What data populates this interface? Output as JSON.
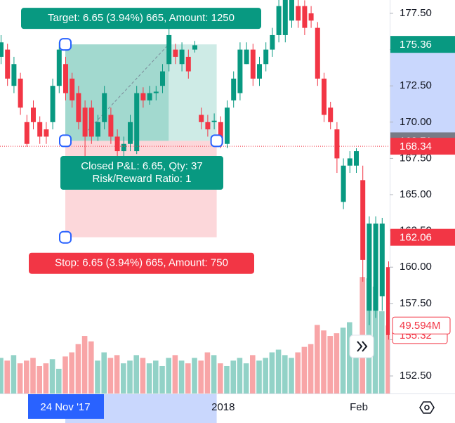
{
  "chart_data": {
    "type": "candlestick",
    "categories": [
      null,
      null,
      null,
      null,
      null,
      null,
      null,
      null,
      null,
      null,
      "24 Nov '17",
      null,
      null,
      null,
      null,
      null,
      null,
      null,
      null,
      null,
      null,
      null,
      null,
      null,
      null,
      null,
      null,
      null,
      null,
      null,
      null,
      null,
      null,
      null,
      "2018",
      null,
      null,
      null,
      null,
      null,
      null,
      null,
      null,
      null,
      null,
      null,
      null,
      null,
      null,
      null,
      null,
      null,
      null,
      null,
      null,
      "Feb",
      null,
      null,
      null,
      null,
      null
    ],
    "open": [
      174.5,
      175,
      172.5,
      173,
      170,
      171,
      170,
      169.5,
      170,
      172.5,
      174,
      173,
      172,
      171,
      171,
      169,
      170,
      170.5,
      169,
      168,
      168.5,
      168,
      172,
      171.5,
      172,
      172.5,
      174,
      175,
      174,
      174.5,
      175,
      170.5,
      170,
      170,
      170,
      168.5,
      171.5,
      172,
      174,
      175,
      173,
      174,
      175,
      176,
      176,
      177,
      178,
      178,
      177.5,
      176.5,
      173,
      171,
      169.5,
      164.5,
      167,
      167,
      166,
      157,
      157,
      158,
      160
    ],
    "high": [
      176,
      175.4,
      174.5,
      173.4,
      170.5,
      171.5,
      170.4,
      170,
      173,
      175.5,
      174.5,
      173.4,
      172.5,
      171.5,
      171.5,
      170.5,
      172.5,
      171,
      169.5,
      169,
      170.5,
      172.5,
      172.4,
      172.5,
      172.5,
      174,
      177,
      175.4,
      175.5,
      175,
      175.6,
      171,
      170.5,
      170.6,
      170.4,
      171.5,
      173.5,
      175.5,
      175.5,
      175.4,
      174.5,
      175.5,
      176.5,
      178.5,
      179,
      179,
      178.5,
      178.4,
      178,
      176.9,
      173.4,
      171.4,
      170,
      167.5,
      168,
      168.2,
      167,
      163.5,
      163.5,
      163.4,
      160.4
    ],
    "low": [
      174,
      172.5,
      172,
      170.5,
      168.3,
      169.5,
      168.5,
      168.5,
      169.5,
      172,
      171.5,
      171,
      169.5,
      166.8,
      168.5,
      168.7,
      169.5,
      168.5,
      167.6,
      167.5,
      168,
      167.8,
      171,
      171.2,
      171.5,
      172,
      173.5,
      174,
      173.5,
      173,
      174.8,
      169.5,
      169,
      169.5,
      168.2,
      168.2,
      171,
      171.5,
      174,
      172.5,
      172.5,
      173.5,
      174.5,
      175.5,
      175.5,
      176.5,
      176.5,
      176,
      176.5,
      172.5,
      170,
      169.5,
      166.5,
      164,
      166.5,
      166.5,
      159,
      156,
      156.5,
      157,
      155
    ],
    "close": [
      175.5,
      173,
      174,
      171,
      168.5,
      170,
      169,
      169,
      172.5,
      175,
      172,
      171.5,
      170,
      169,
      169,
      170,
      172,
      169,
      168,
      168.5,
      170,
      172,
      171.5,
      172,
      172.1,
      173.5,
      176,
      174.5,
      175,
      173.5,
      175.3,
      170,
      169.5,
      170.1,
      168.5,
      171,
      173,
      175,
      175,
      173,
      174,
      175,
      176,
      178,
      178.5,
      178.5,
      177,
      176.5,
      177,
      173,
      170.5,
      170,
      167.5,
      167,
      167.5,
      168,
      160.5,
      163,
      163,
      163,
      155.32
    ],
    "volume": [
      26,
      24,
      28,
      22,
      24,
      26,
      20,
      22,
      25,
      18,
      27,
      30,
      36,
      42,
      38,
      24,
      30,
      26,
      28,
      22,
      24,
      28,
      26,
      22,
      24,
      20,
      26,
      28,
      24,
      22,
      26,
      24,
      30,
      28,
      22,
      20,
      24,
      26,
      22,
      28,
      24,
      26,
      30,
      32,
      28,
      26,
      30,
      34,
      36,
      50,
      46,
      42,
      44,
      48,
      52,
      40,
      85,
      84,
      78,
      60,
      49.594
    ],
    "colors": {
      "up": "#089981",
      "down": "#f23645",
      "up_volume": "#92d2c7",
      "down_volume": "#f8a5a7"
    },
    "ylim": [
      151.29,
      178.42
    ],
    "yticks": [
      {
        "value": 177.5,
        "label": "177.50"
      },
      {
        "value": 175,
        "label": "175.00"
      },
      {
        "value": 172.5,
        "label": "172.50"
      },
      {
        "value": 170,
        "label": "170.00"
      },
      {
        "value": 167.5,
        "label": "167.50"
      },
      {
        "value": 165,
        "label": "165.00"
      },
      {
        "value": 162.5,
        "label": "162.50"
      },
      {
        "value": 160,
        "label": "160.00"
      },
      {
        "value": 157.5,
        "label": "157.50"
      },
      {
        "value": 155,
        "label": "155.00"
      },
      {
        "value": 152.5,
        "label": "152.50"
      }
    ],
    "volume_ylim": [
      0,
      61
    ],
    "price_markers": [
      {
        "value": 175.36,
        "color": "#089981"
      },
      {
        "value": 168.71,
        "color": "#787b86"
      },
      {
        "value": 168.34,
        "color": "#f23645",
        "line": "dotted"
      },
      {
        "value": 162.06,
        "color": "#f23645"
      }
    ],
    "volume_marker": {
      "value": 49.594,
      "label": "49.594M",
      "color": "#f23645"
    },
    "position": {
      "start_index": 10,
      "end_index": 33,
      "filled_end_index": 26,
      "entry": 168.71,
      "target": 175.36,
      "stop": 162.06,
      "target_label": "Target: 6.65 (3.94%) 665, Amount: 1250",
      "result_labels": [
        "Closed P&L: 6.65, Qty: 37",
        "Risk/Reward Ratio: 1"
      ],
      "stop_label": "Stop: 6.65 (3.94%) 665, Amount: 750"
    }
  }
}
